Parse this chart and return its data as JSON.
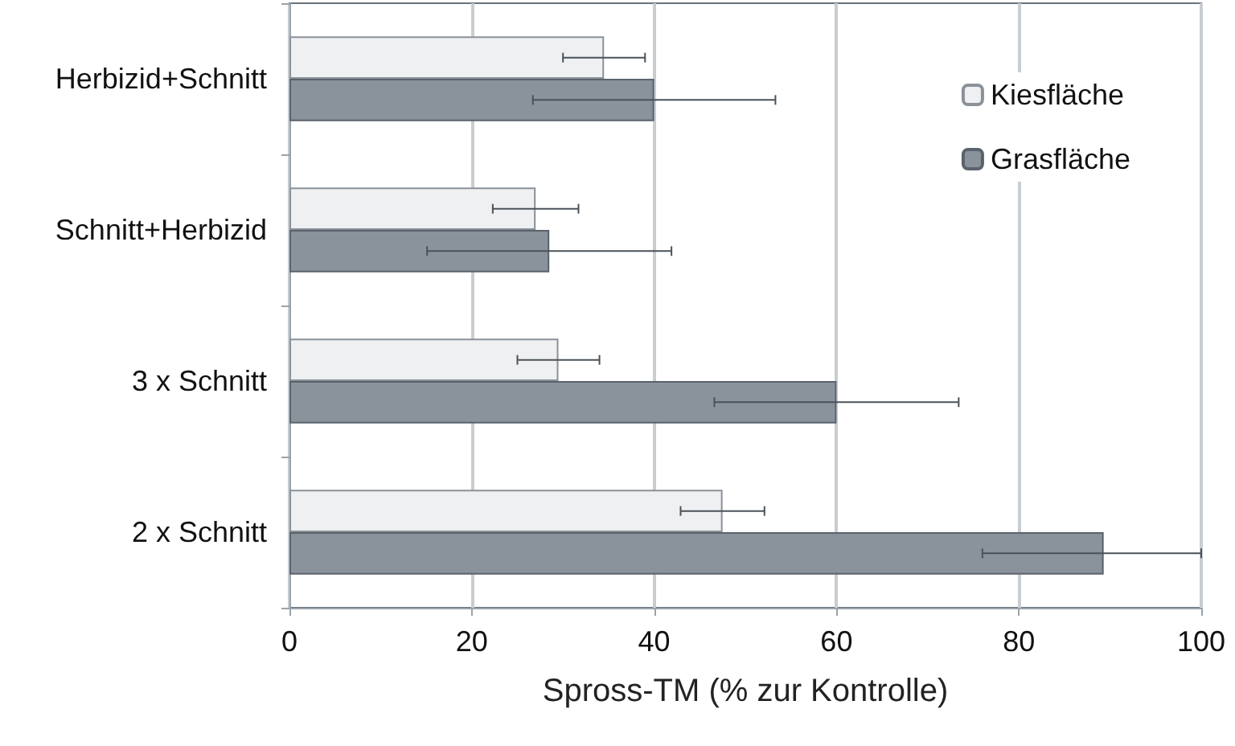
{
  "chart_data": {
    "type": "bar",
    "orientation": "horizontal",
    "xlabel": "Spross-TM (% zur Kontrolle)",
    "categories": [
      "Herbizid+Schnitt",
      "Schnitt+Herbizid",
      "3 x Schnitt",
      "2 x Schnitt"
    ],
    "series": [
      {
        "name": "Kiesfläche",
        "color": "#eef0f1",
        "values": [
          34.5,
          27,
          29.5,
          47.5
        ],
        "errors": [
          4.5,
          4.7,
          4.5,
          4.6
        ]
      },
      {
        "name": "Grasfläche",
        "color": "#8a939c",
        "values": [
          40,
          28.5,
          60,
          89.3
        ],
        "errors": [
          13.3,
          13.4,
          13.4,
          [
            76,
            100
          ]
        ]
      }
    ],
    "xlim": [
      0,
      100
    ],
    "xticks": [
      0,
      20,
      40,
      60,
      80,
      100
    ],
    "grid": "x",
    "legend": "top right"
  }
}
